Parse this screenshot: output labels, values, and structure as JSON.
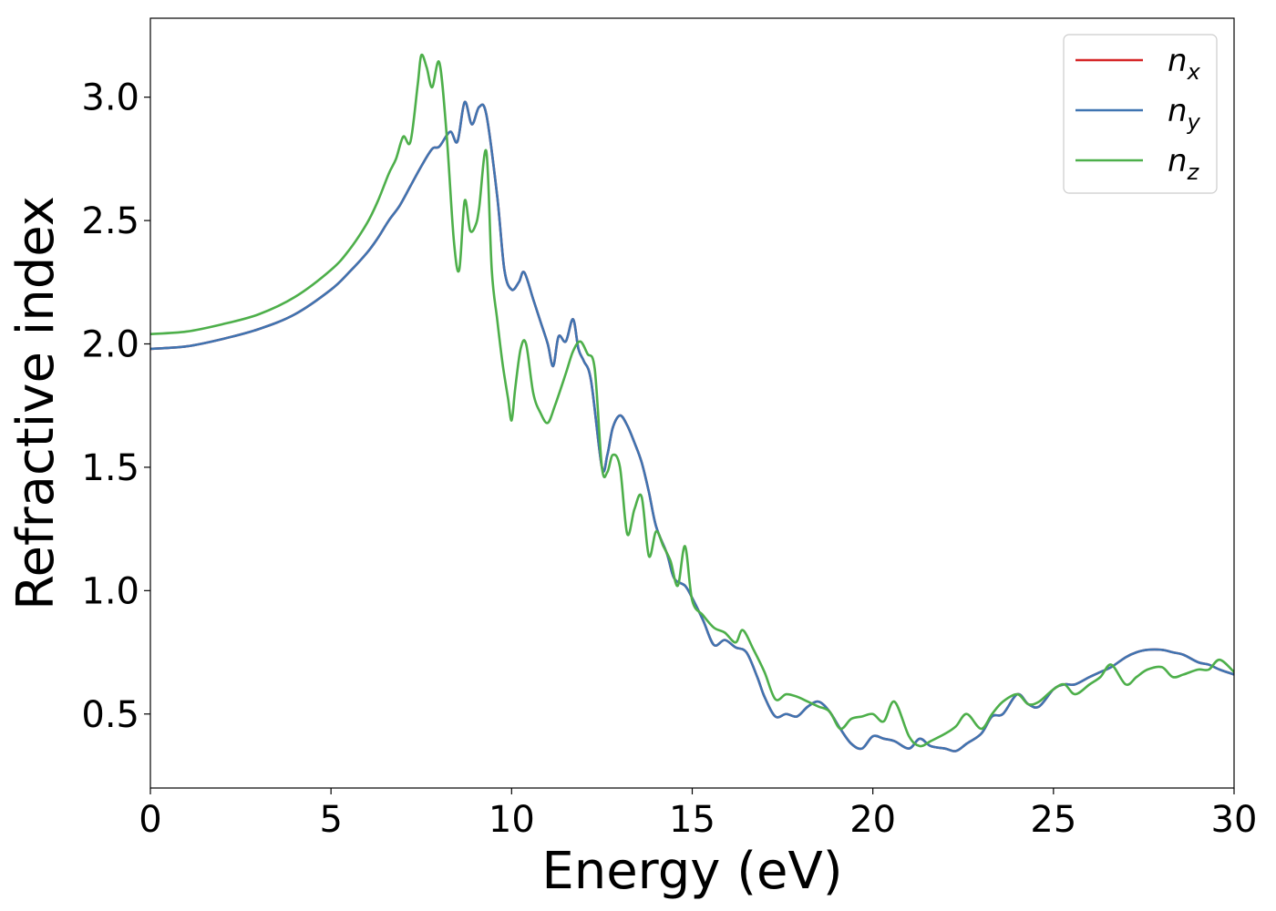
{
  "chart_data": {
    "type": "line",
    "xlabel": "Energy (eV)",
    "ylabel": "Refractive index",
    "xlim": [
      0,
      30
    ],
    "ylim": [
      0.2,
      3.32
    ],
    "xticks": [
      0,
      5,
      10,
      15,
      20,
      25,
      30
    ],
    "xtick_labels": [
      "0",
      "5",
      "10",
      "15",
      "20",
      "25",
      "30"
    ],
    "yticks": [
      0.5,
      1.0,
      1.5,
      2.0,
      2.5,
      3.0
    ],
    "ytick_labels": [
      "0.5",
      "1.0",
      "1.5",
      "2.0",
      "2.5",
      "3.0"
    ],
    "grid": false,
    "legend_position": "top-right",
    "series": [
      {
        "name": "n_x",
        "legend_base": "n",
        "legend_sub": "x",
        "color": "#d62728",
        "x": [
          0,
          1,
          2,
          3,
          4,
          5,
          5.5,
          6,
          6.3,
          6.6,
          6.9,
          7.2,
          7.5,
          7.8,
          8.0,
          8.3,
          8.5,
          8.7,
          8.9,
          9.1,
          9.3,
          9.6,
          9.8,
          10.0,
          10.2,
          10.35,
          10.6,
          10.8,
          11.0,
          11.15,
          11.3,
          11.5,
          11.7,
          11.85,
          12.0,
          12.2,
          12.5,
          12.65,
          12.8,
          13.0,
          13.2,
          13.4,
          13.6,
          13.8,
          14.0,
          14.3,
          14.5,
          14.8,
          15.0,
          15.3,
          15.6,
          15.9,
          16.2,
          16.5,
          16.8,
          17.0,
          17.3,
          17.6,
          17.9,
          18.2,
          18.5,
          18.8,
          19.1,
          19.4,
          19.7,
          20.0,
          20.3,
          20.6,
          21.0,
          21.3,
          21.6,
          22.0,
          22.3,
          22.6,
          23.0,
          23.3,
          23.6,
          24.0,
          24.3,
          24.6,
          25.0,
          25.3,
          25.6,
          26.0,
          26.3,
          26.6,
          27.0,
          27.3,
          27.6,
          28.0,
          28.3,
          28.6,
          29.0,
          29.3,
          29.6,
          30.0
        ],
        "y": [
          1.98,
          1.99,
          2.02,
          2.06,
          2.12,
          2.22,
          2.29,
          2.37,
          2.43,
          2.5,
          2.56,
          2.64,
          2.72,
          2.79,
          2.8,
          2.86,
          2.82,
          2.98,
          2.89,
          2.96,
          2.93,
          2.6,
          2.3,
          2.22,
          2.25,
          2.29,
          2.18,
          2.09,
          2.0,
          1.91,
          2.03,
          2.01,
          2.1,
          1.98,
          1.93,
          1.85,
          1.5,
          1.55,
          1.66,
          1.71,
          1.67,
          1.6,
          1.52,
          1.4,
          1.26,
          1.15,
          1.05,
          1.02,
          0.97,
          0.88,
          0.78,
          0.8,
          0.77,
          0.75,
          0.65,
          0.57,
          0.49,
          0.5,
          0.49,
          0.53,
          0.55,
          0.51,
          0.44,
          0.38,
          0.36,
          0.41,
          0.4,
          0.39,
          0.36,
          0.4,
          0.37,
          0.36,
          0.35,
          0.38,
          0.42,
          0.49,
          0.5,
          0.58,
          0.54,
          0.53,
          0.6,
          0.62,
          0.62,
          0.65,
          0.67,
          0.69,
          0.73,
          0.75,
          0.76,
          0.76,
          0.75,
          0.74,
          0.71,
          0.7,
          0.68,
          0.66
        ]
      },
      {
        "name": "n_y",
        "legend_base": "n",
        "legend_sub": "y",
        "color": "#3f74b1",
        "x": [
          0,
          1,
          2,
          3,
          4,
          5,
          5.5,
          6,
          6.3,
          6.6,
          6.9,
          7.2,
          7.5,
          7.8,
          8.0,
          8.3,
          8.5,
          8.7,
          8.9,
          9.1,
          9.3,
          9.6,
          9.8,
          10.0,
          10.2,
          10.35,
          10.6,
          10.8,
          11.0,
          11.15,
          11.3,
          11.5,
          11.7,
          11.85,
          12.0,
          12.2,
          12.5,
          12.65,
          12.8,
          13.0,
          13.2,
          13.4,
          13.6,
          13.8,
          14.0,
          14.3,
          14.5,
          14.8,
          15.0,
          15.3,
          15.6,
          15.9,
          16.2,
          16.5,
          16.8,
          17.0,
          17.3,
          17.6,
          17.9,
          18.2,
          18.5,
          18.8,
          19.1,
          19.4,
          19.7,
          20.0,
          20.3,
          20.6,
          21.0,
          21.3,
          21.6,
          22.0,
          22.3,
          22.6,
          23.0,
          23.3,
          23.6,
          24.0,
          24.3,
          24.6,
          25.0,
          25.3,
          25.6,
          26.0,
          26.3,
          26.6,
          27.0,
          27.3,
          27.6,
          28.0,
          28.3,
          28.6,
          29.0,
          29.3,
          29.6,
          30.0
        ],
        "y": [
          1.98,
          1.99,
          2.02,
          2.06,
          2.12,
          2.22,
          2.29,
          2.37,
          2.43,
          2.5,
          2.56,
          2.64,
          2.72,
          2.79,
          2.8,
          2.86,
          2.82,
          2.98,
          2.89,
          2.96,
          2.93,
          2.6,
          2.3,
          2.22,
          2.25,
          2.29,
          2.18,
          2.09,
          2.0,
          1.91,
          2.03,
          2.01,
          2.1,
          1.98,
          1.93,
          1.85,
          1.5,
          1.55,
          1.66,
          1.71,
          1.67,
          1.6,
          1.52,
          1.4,
          1.26,
          1.15,
          1.05,
          1.02,
          0.97,
          0.88,
          0.78,
          0.8,
          0.77,
          0.75,
          0.65,
          0.57,
          0.49,
          0.5,
          0.49,
          0.53,
          0.55,
          0.51,
          0.44,
          0.38,
          0.36,
          0.41,
          0.4,
          0.39,
          0.36,
          0.4,
          0.37,
          0.36,
          0.35,
          0.38,
          0.42,
          0.49,
          0.5,
          0.58,
          0.54,
          0.53,
          0.6,
          0.62,
          0.62,
          0.65,
          0.67,
          0.69,
          0.73,
          0.75,
          0.76,
          0.76,
          0.75,
          0.74,
          0.71,
          0.7,
          0.68,
          0.66
        ]
      },
      {
        "name": "n_z",
        "legend_base": "n",
        "legend_sub": "z",
        "color": "#4daf4a",
        "x": [
          0,
          1,
          2,
          3,
          4,
          5,
          5.5,
          6,
          6.3,
          6.6,
          6.8,
          7.0,
          7.2,
          7.4,
          7.5,
          7.65,
          7.8,
          8.0,
          8.2,
          8.4,
          8.55,
          8.7,
          8.85,
          9.0,
          9.1,
          9.3,
          9.45,
          9.6,
          9.75,
          9.9,
          10.0,
          10.1,
          10.25,
          10.4,
          10.6,
          10.8,
          11.0,
          11.2,
          11.5,
          11.7,
          11.9,
          12.1,
          12.3,
          12.5,
          12.65,
          12.8,
          13.0,
          13.2,
          13.4,
          13.6,
          13.8,
          14.0,
          14.2,
          14.4,
          14.6,
          14.8,
          15.0,
          15.3,
          15.6,
          15.9,
          16.2,
          16.4,
          16.7,
          17.0,
          17.3,
          17.6,
          17.9,
          18.2,
          18.5,
          18.8,
          19.1,
          19.4,
          19.7,
          20.0,
          20.3,
          20.6,
          21.0,
          21.3,
          21.6,
          22.0,
          22.3,
          22.6,
          23.0,
          23.3,
          23.6,
          24.0,
          24.3,
          24.6,
          25.0,
          25.3,
          25.6,
          26.0,
          26.3,
          26.6,
          27.0,
          27.3,
          27.6,
          28.0,
          28.3,
          28.6,
          29.0,
          29.3,
          29.6,
          30.0
        ],
        "y": [
          2.04,
          2.05,
          2.08,
          2.12,
          2.19,
          2.3,
          2.38,
          2.49,
          2.58,
          2.69,
          2.75,
          2.84,
          2.82,
          3.05,
          3.17,
          3.12,
          3.04,
          3.14,
          2.85,
          2.42,
          2.3,
          2.58,
          2.46,
          2.48,
          2.55,
          2.78,
          2.3,
          2.1,
          1.92,
          1.78,
          1.69,
          1.82,
          1.98,
          2.0,
          1.8,
          1.72,
          1.68,
          1.75,
          1.88,
          1.97,
          2.01,
          1.96,
          1.9,
          1.5,
          1.48,
          1.55,
          1.5,
          1.23,
          1.33,
          1.38,
          1.14,
          1.24,
          1.18,
          1.12,
          1.02,
          1.18,
          0.96,
          0.9,
          0.85,
          0.83,
          0.79,
          0.84,
          0.76,
          0.67,
          0.56,
          0.58,
          0.57,
          0.55,
          0.53,
          0.51,
          0.44,
          0.48,
          0.49,
          0.5,
          0.47,
          0.55,
          0.41,
          0.37,
          0.39,
          0.42,
          0.45,
          0.5,
          0.44,
          0.5,
          0.55,
          0.58,
          0.54,
          0.55,
          0.6,
          0.62,
          0.58,
          0.62,
          0.65,
          0.7,
          0.62,
          0.65,
          0.68,
          0.69,
          0.65,
          0.66,
          0.68,
          0.68,
          0.72,
          0.67
        ]
      }
    ]
  }
}
